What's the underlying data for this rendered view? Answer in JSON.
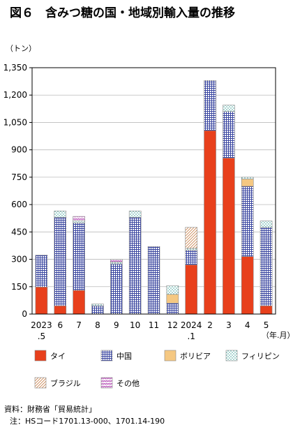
{
  "title": "図６　含みつ糖の国・地域別輸入量の推移",
  "unit_label": "（トン）",
  "x_unit_label": "（年.月）",
  "source": "資料：財務省「貿易統計」",
  "note": "注：HSコード1701.13-000、1701.14-190",
  "colors": {
    "タイ": "#e8401c",
    "中国": "#5560a8",
    "ボリビア": "#f5c882",
    "フィリピン": "#4aa8a0",
    "ブラジル": "#d09060",
    "その他": "#b04ab0"
  },
  "chart_data": {
    "type": "bar",
    "stacked": true,
    "ylim": [
      0,
      1350
    ],
    "yticks": [
      0,
      150,
      300,
      450,
      600,
      750,
      900,
      1050,
      1200,
      1350
    ],
    "ytick_labels": [
      "0",
      "150",
      "300",
      "450",
      "600",
      "750",
      "900",
      "1,050",
      "1,200",
      "1,350"
    ],
    "categories": [
      {
        "label": "2023",
        "sub": ".5"
      },
      {
        "label": "6",
        "sub": ""
      },
      {
        "label": "7",
        "sub": ""
      },
      {
        "label": "8",
        "sub": ""
      },
      {
        "label": "9",
        "sub": ""
      },
      {
        "label": "10",
        "sub": ""
      },
      {
        "label": "11",
        "sub": ""
      },
      {
        "label": "12",
        "sub": ""
      },
      {
        "label": "2024",
        "sub": ".1"
      },
      {
        "label": "2",
        "sub": ""
      },
      {
        "label": "3",
        "sub": ""
      },
      {
        "label": "4",
        "sub": ""
      },
      {
        "label": "5",
        "sub": ""
      }
    ],
    "series": [
      {
        "name": "タイ",
        "values": [
          148,
          45,
          130,
          0,
          0,
          0,
          0,
          0,
          270,
          1005,
          855,
          315,
          45
        ]
      },
      {
        "name": "中国",
        "values": [
          175,
          485,
          370,
          45,
          275,
          530,
          370,
          60,
          80,
          275,
          255,
          385,
          430
        ]
      },
      {
        "name": "ボリビア",
        "values": [
          0,
          0,
          0,
          0,
          0,
          0,
          0,
          48,
          0,
          0,
          0,
          40,
          0
        ]
      },
      {
        "name": "フィリピン",
        "values": [
          0,
          35,
          10,
          10,
          10,
          35,
          0,
          48,
          10,
          0,
          35,
          10,
          35
        ]
      },
      {
        "name": "ブラジル",
        "values": [
          0,
          0,
          0,
          0,
          0,
          0,
          0,
          0,
          115,
          0,
          0,
          0,
          0
        ]
      },
      {
        "name": "その他",
        "values": [
          0,
          0,
          25,
          0,
          15,
          0,
          0,
          0,
          0,
          0,
          0,
          0,
          0
        ]
      }
    ]
  }
}
